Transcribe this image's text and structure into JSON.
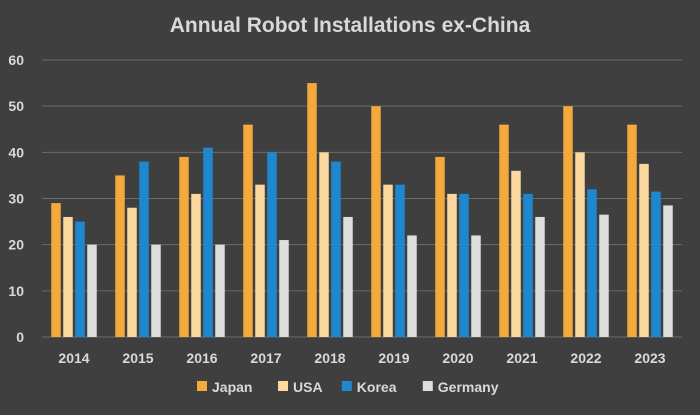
{
  "chart_data": {
    "type": "bar",
    "title": "Annual Robot Installations ex-China",
    "xlabel": "",
    "ylabel": "",
    "categories": [
      "2014",
      "2015",
      "2016",
      "2017",
      "2018",
      "2019",
      "2020",
      "2021",
      "2022",
      "2023"
    ],
    "series": [
      {
        "name": "Japan",
        "color": "#f3a93b",
        "values": [
          29,
          35,
          39,
          46,
          55,
          50,
          39,
          46,
          50,
          46
        ]
      },
      {
        "name": "USA",
        "color": "#fbd89d",
        "values": [
          26,
          28,
          31,
          33,
          40,
          33,
          31,
          36,
          40,
          37.5
        ]
      },
      {
        "name": "Korea",
        "color": "#1f87d0",
        "values": [
          25,
          38,
          41,
          40,
          38,
          33,
          31,
          31,
          32,
          31.5
        ]
      },
      {
        "name": "Germany",
        "color": "#dedede",
        "values": [
          20,
          20,
          20,
          21,
          26,
          22,
          22,
          26,
          26.5,
          28.5
        ]
      }
    ],
    "ylim": [
      0,
      60
    ],
    "yticks": [
      0,
      10,
      20,
      30,
      40,
      50,
      60
    ],
    "grid": true,
    "legend": "bottom",
    "background": "#3f3f3f",
    "gridcolor": "#6b6b6b",
    "textcolor": "#d9d9d9"
  }
}
